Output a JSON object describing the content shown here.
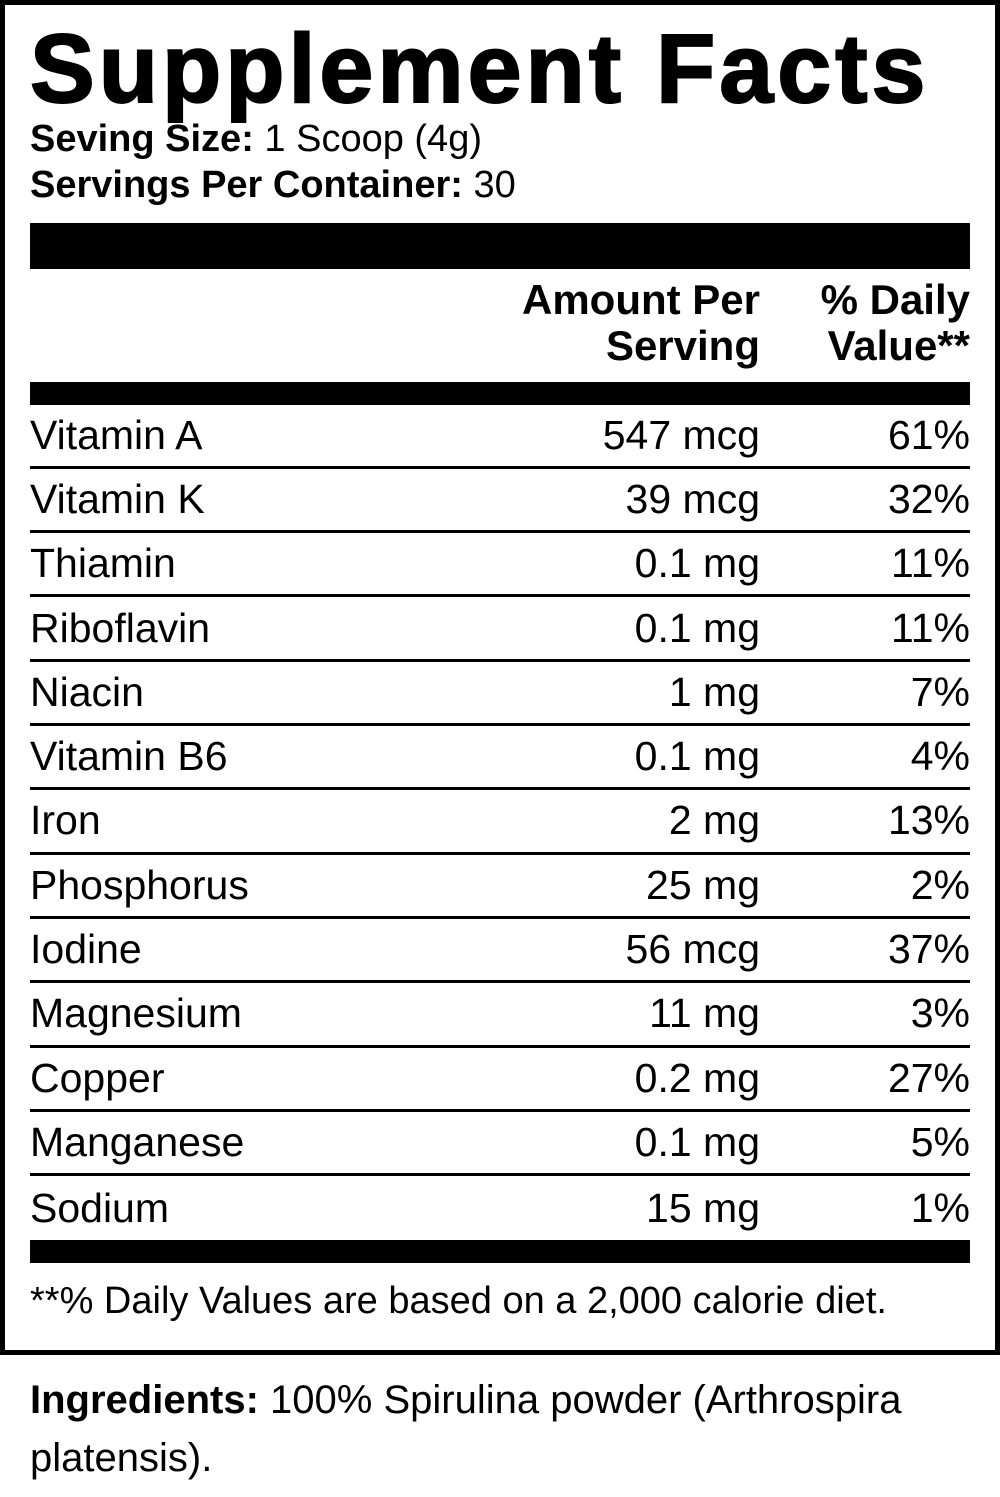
{
  "label": {
    "title": "Supplement Facts",
    "serving_size": {
      "label": "Seving Size:",
      "value": "1 Scoop (4g)"
    },
    "servings_per_container": {
      "label": "Servings Per Container:",
      "value": "30"
    },
    "column_headers": {
      "amount": "Amount Per Serving",
      "daily_value": "% Daily Value**"
    },
    "rows": [
      {
        "name": "Vitamin A",
        "amount": "547 mcg",
        "dv": "61%"
      },
      {
        "name": "Vitamin K",
        "amount": "39 mcg",
        "dv": "32%"
      },
      {
        "name": "Thiamin",
        "amount": "0.1 mg",
        "dv": "11%"
      },
      {
        "name": "Riboflavin",
        "amount": "0.1 mg",
        "dv": "11%"
      },
      {
        "name": "Niacin",
        "amount": "1 mg",
        "dv": "7%"
      },
      {
        "name": "Vitamin B6",
        "amount": "0.1 mg",
        "dv": "4%"
      },
      {
        "name": "Iron",
        "amount": "2 mg",
        "dv": "13%"
      },
      {
        "name": "Phosphorus",
        "amount": "25 mg",
        "dv": "2%"
      },
      {
        "name": "Iodine",
        "amount": "56 mcg",
        "dv": "37%"
      },
      {
        "name": "Magnesium",
        "amount": "11 mg",
        "dv": "3%"
      },
      {
        "name": "Copper",
        "amount": "0.2 mg",
        "dv": "27%"
      },
      {
        "name": "Manganese",
        "amount": "0.1 mg",
        "dv": "5%"
      },
      {
        "name": "Sodium",
        "amount": "15 mg",
        "dv": "1%"
      }
    ],
    "footnote": "**% Daily Values are based on a 2,000 calorie diet.",
    "colors": {
      "ink": "#000000",
      "background": "#ffffff"
    }
  },
  "ingredients": {
    "label": "Ingredients:",
    "value": " 100% Spirulina powder (Arthrospira platensis)."
  }
}
